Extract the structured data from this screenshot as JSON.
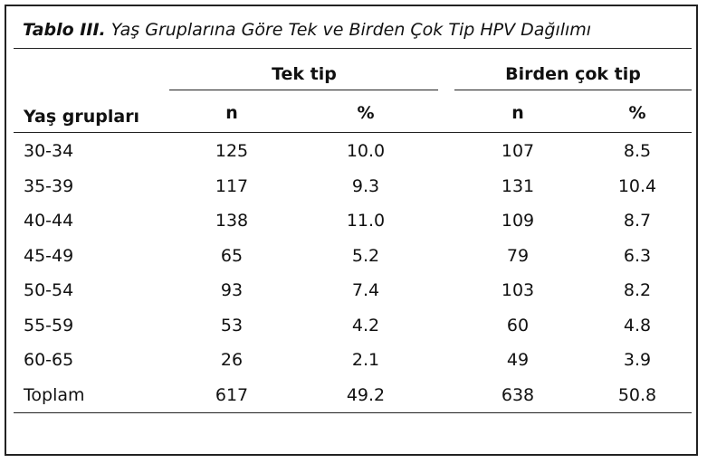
{
  "table": {
    "caption_label": "Tablo III.",
    "caption_text": "Yaş Gruplarına Göre Tek ve Birden Çok Tip HPV Dağılımı",
    "group_headers": [
      "Tek tip",
      "Birden çok tip"
    ],
    "row_header": "Yaş grupları",
    "sub_headers": [
      "n",
      "%",
      "n",
      "%"
    ],
    "rows": [
      {
        "group": "30-34",
        "values": [
          "125",
          "10.0",
          "107",
          "8.5"
        ]
      },
      {
        "group": "35-39",
        "values": [
          "117",
          "9.3",
          "131",
          "10.4"
        ]
      },
      {
        "group": "40-44",
        "values": [
          "138",
          "11.0",
          "109",
          "8.7"
        ]
      },
      {
        "group": "45-49",
        "values": [
          "65",
          "5.2",
          "79",
          "6.3"
        ]
      },
      {
        "group": "50-54",
        "values": [
          "93",
          "7.4",
          "103",
          "8.2"
        ]
      },
      {
        "group": "55-59",
        "values": [
          "53",
          "4.2",
          "60",
          "4.8"
        ]
      },
      {
        "group": "60-65",
        "values": [
          "26",
          "2.1",
          "49",
          "3.9"
        ]
      },
      {
        "group": "Toplam",
        "values": [
          "617",
          "49.2",
          "638",
          "50.8"
        ]
      }
    ]
  }
}
